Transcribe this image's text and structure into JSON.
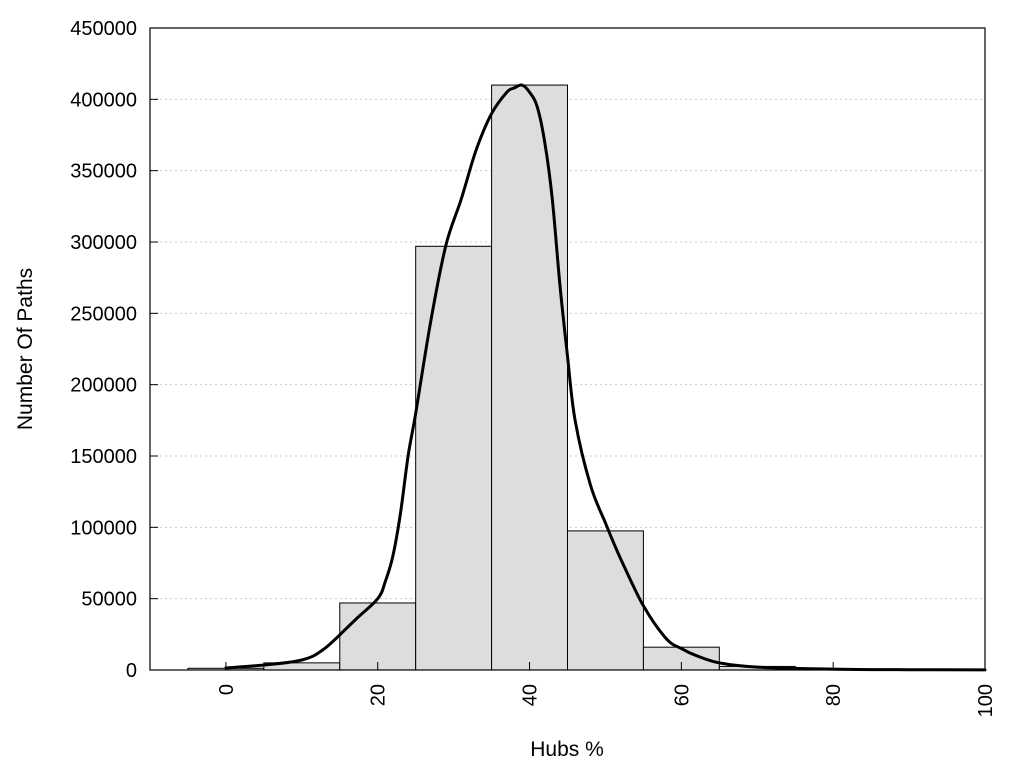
{
  "chart_data": {
    "type": "bar",
    "title": "",
    "xlabel": "Hubs %",
    "ylabel": "Number Of Paths",
    "xlim": [
      -10,
      100
    ],
    "ylim": [
      0,
      450000
    ],
    "grid": "horizontal-dotted",
    "legend": "none",
    "bar_color": "#dddddd",
    "line_color": "#000000",
    "x_ticks": [
      "0",
      "20",
      "40",
      "60",
      "80",
      "100"
    ],
    "y_ticks": [
      "0",
      "50000",
      "100000",
      "150000",
      "200000",
      "250000",
      "300000",
      "350000",
      "400000",
      "450000"
    ],
    "bins": [
      {
        "center": 0,
        "value": 1200
      },
      {
        "center": 10,
        "value": 5000
      },
      {
        "center": 20,
        "value": 47000
      },
      {
        "center": 30,
        "value": 297000
      },
      {
        "center": 40,
        "value": 410000
      },
      {
        "center": 50,
        "value": 97500
      },
      {
        "center": 60,
        "value": 16000
      },
      {
        "center": 70,
        "value": 2500
      },
      {
        "center": 80,
        "value": 700
      },
      {
        "center": 90,
        "value": 300
      }
    ],
    "bin_width": 10,
    "curve": {
      "x": [
        0,
        5,
        10,
        13,
        17,
        20,
        21,
        22,
        23,
        24,
        25,
        27,
        29,
        31,
        33,
        35,
        37,
        38,
        39,
        40,
        41,
        42,
        43,
        44,
        45,
        46,
        48,
        50,
        52,
        55,
        58,
        60,
        62,
        65,
        70,
        80,
        90,
        100
      ],
      "y": [
        1500,
        3500,
        7000,
        15000,
        35000,
        50000,
        62000,
        80000,
        110000,
        150000,
        180000,
        245000,
        298000,
        330000,
        365000,
        390000,
        405000,
        408000,
        410000,
        405000,
        395000,
        370000,
        330000,
        270000,
        220000,
        175000,
        130000,
        103000,
        78000,
        45000,
        22000,
        15000,
        10000,
        5000,
        2000,
        600,
        200,
        100
      ]
    }
  }
}
